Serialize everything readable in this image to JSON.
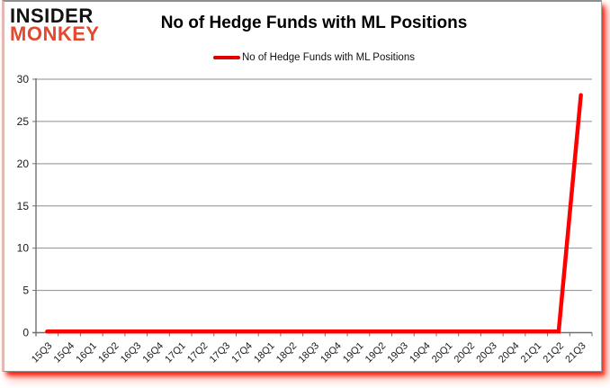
{
  "logo": {
    "line1": "INSIDER",
    "line2": "MONKEY",
    "color_line1": "#121212",
    "color_line2": "#e2492f"
  },
  "header": {
    "title": "No of Hedge Funds with ML Positions"
  },
  "legend": {
    "label": "No of Hedge Funds with ML Positions",
    "swatch_color": "#e00000"
  },
  "chart_data": {
    "type": "line",
    "title": "No of Hedge Funds with ML Positions",
    "categories": [
      "15Q3",
      "15Q4",
      "16Q1",
      "16Q2",
      "16Q3",
      "16Q4",
      "17Q1",
      "17Q2",
      "17Q3",
      "17Q4",
      "18Q1",
      "18Q2",
      "18Q3",
      "18Q4",
      "19Q1",
      "19Q2",
      "19Q3",
      "19Q4",
      "20Q1",
      "20Q2",
      "20Q3",
      "20Q4",
      "21Q1",
      "21Q2",
      "21Q3"
    ],
    "series": [
      {
        "name": "No of Hedge Funds with ML Positions",
        "values": [
          0,
          0,
          0,
          0,
          0,
          0,
          0,
          0,
          0,
          0,
          0,
          0,
          0,
          0,
          0,
          0,
          0,
          0,
          0,
          0,
          0,
          0,
          0,
          0,
          28
        ]
      }
    ],
    "xlabel": "",
    "ylabel": "",
    "ylim": [
      0,
      30
    ],
    "ytick_step": 5,
    "grid": true,
    "legend_position": "top",
    "line_color": "#ff0000"
  },
  "colors": {
    "grid": "#8e8e8e",
    "axis": "#6f6f6f",
    "tick_label": "#1a1a1a",
    "background": "#ffffff"
  }
}
